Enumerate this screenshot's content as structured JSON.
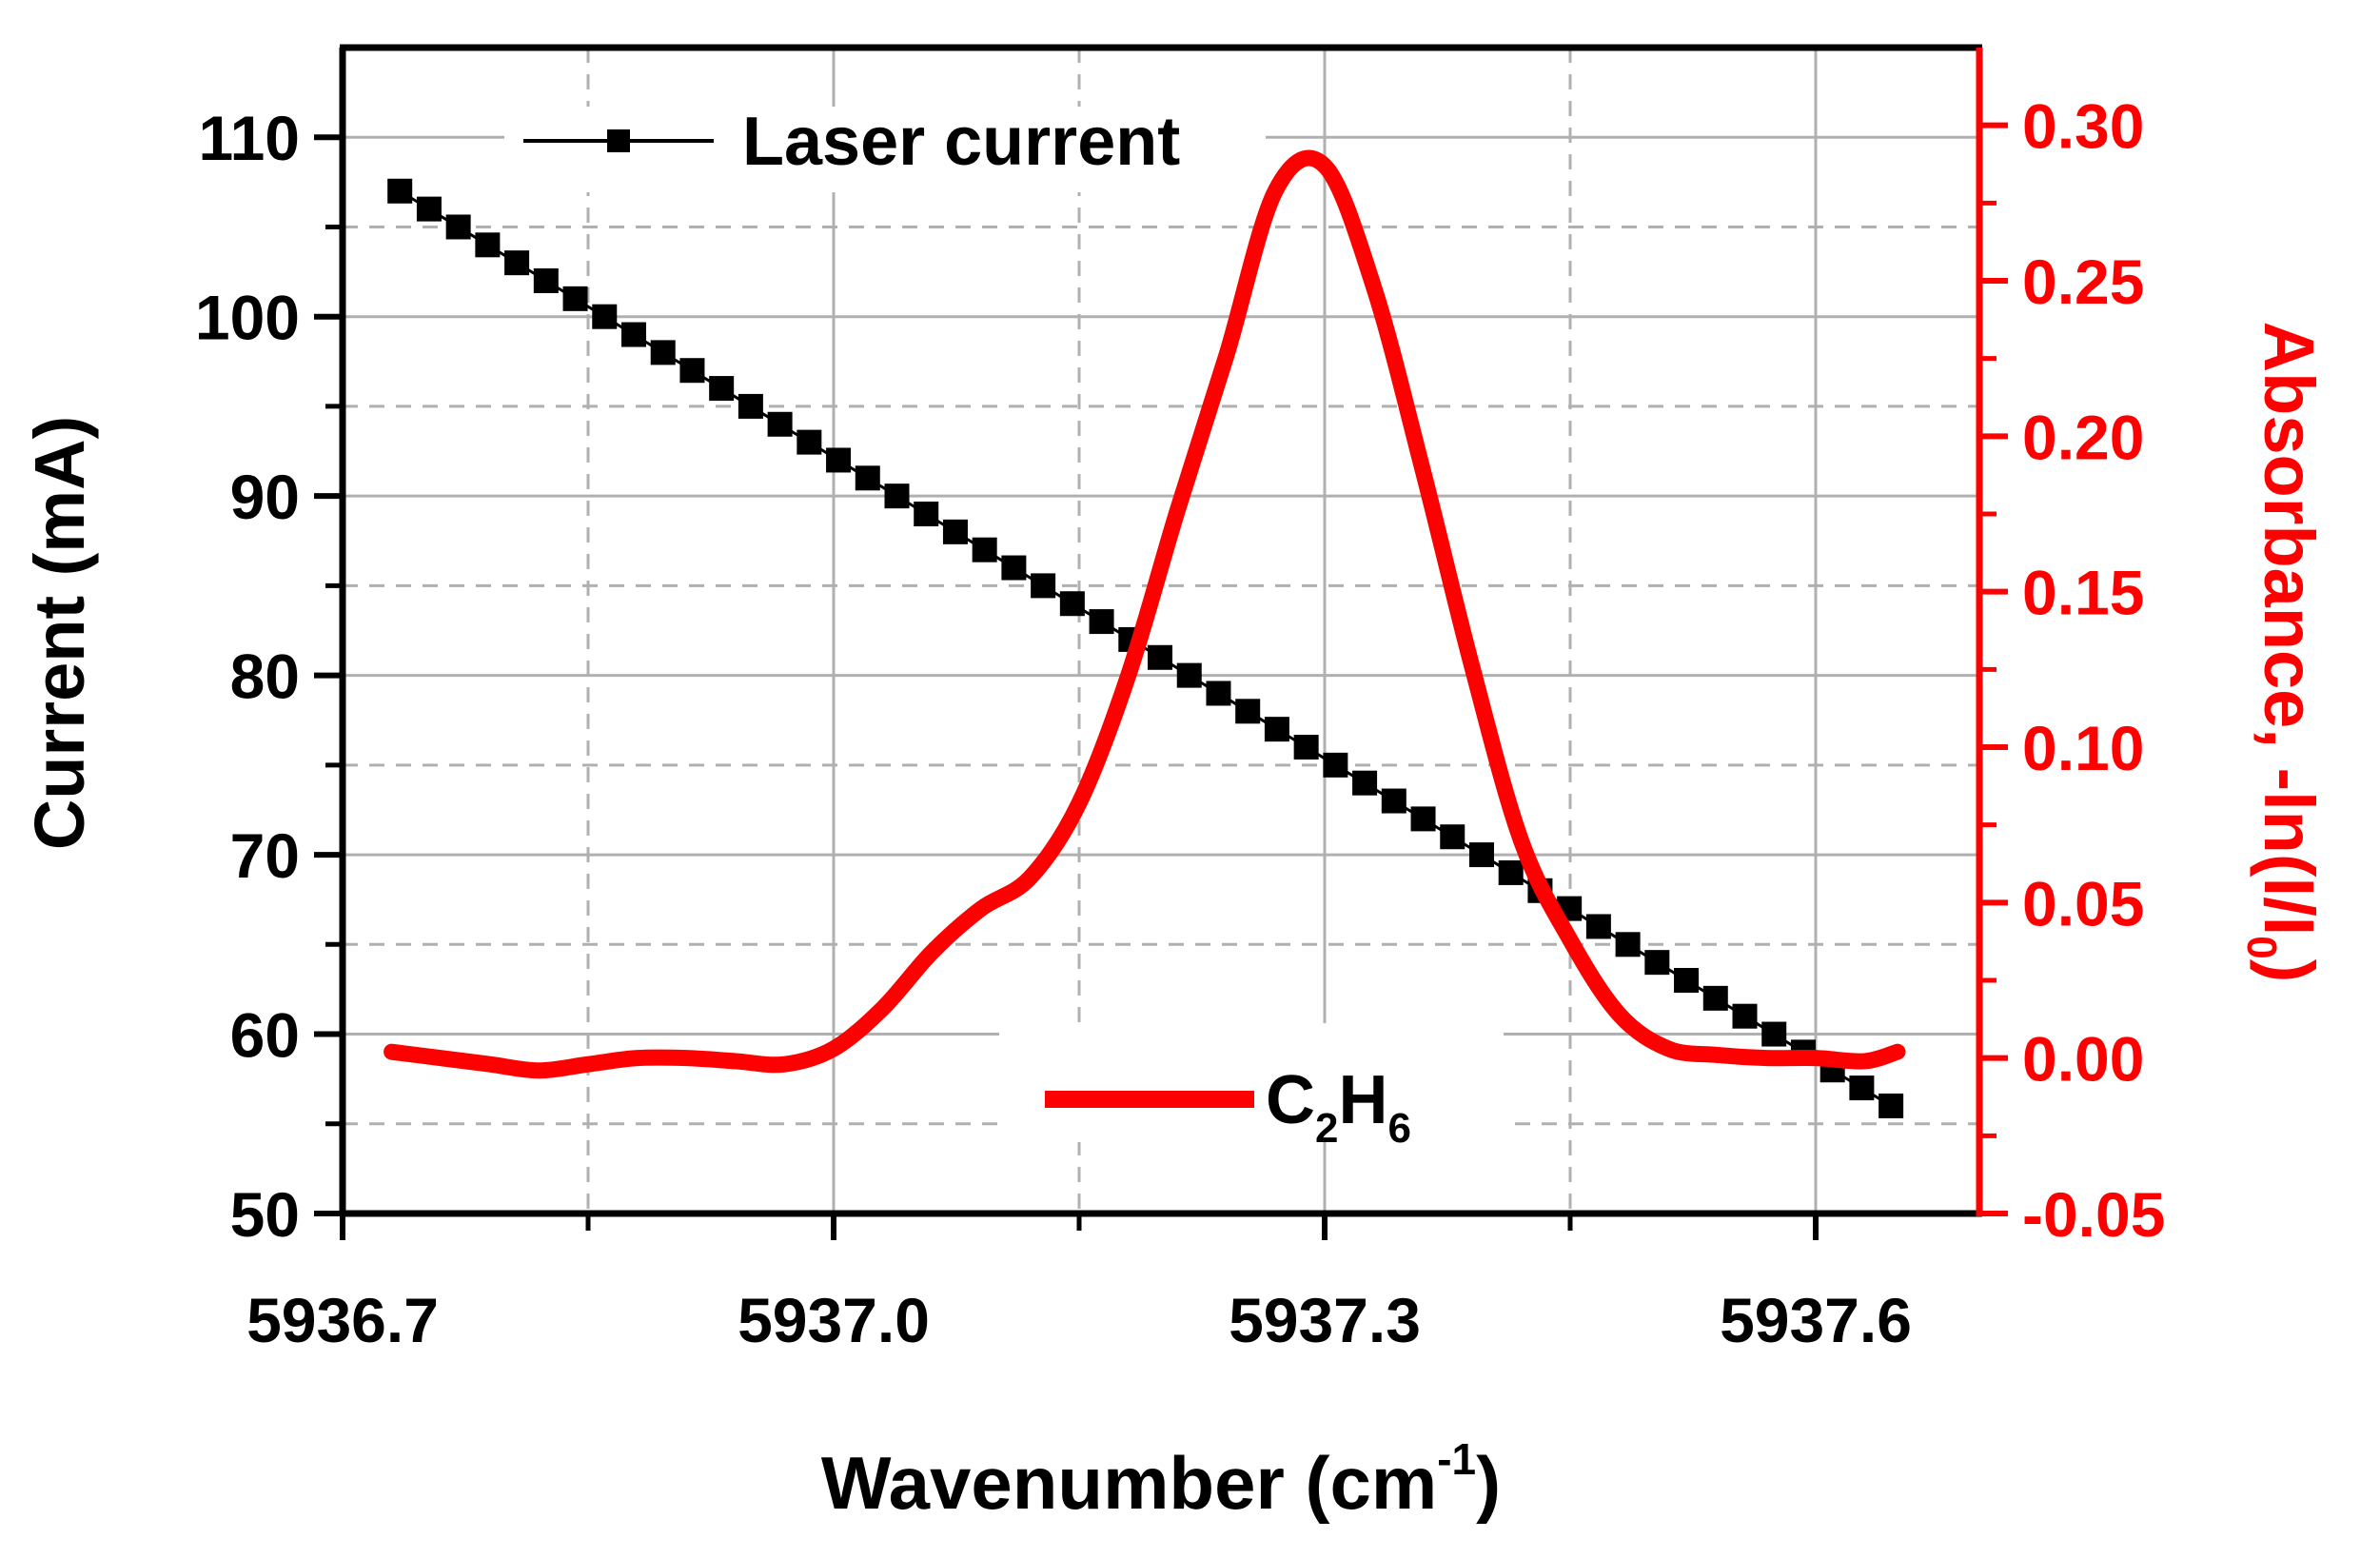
{
  "chart_data": {
    "type": "line",
    "xlabel": "Wavenumber (cm",
    "xlabel_sup": "-1",
    "xlabel_close": ")",
    "ylabel_left": "Current (mA)",
    "ylabel_right": "Absorbance, -ln(I/I",
    "ylabel_right_sub": "0",
    "ylabel_right_close": ")",
    "xlim": [
      5936.7,
      5937.7
    ],
    "ylim_left": [
      50,
      115
    ],
    "ylim_right": [
      -0.05,
      0.325
    ],
    "x_ticks": [
      5936.7,
      5937.0,
      5937.3,
      5937.6
    ],
    "x_tick_labels": [
      "5936.7",
      "5937.0",
      "5937.3",
      "5937.6"
    ],
    "y_left_ticks": [
      50,
      60,
      70,
      80,
      90,
      100,
      110
    ],
    "y_left_tick_labels": [
      "50",
      "60",
      "70",
      "80",
      "90",
      "100",
      "110"
    ],
    "y_right_ticks": [
      -0.05,
      0.0,
      0.05,
      0.1,
      0.15,
      0.2,
      0.25,
      0.3
    ],
    "y_right_tick_labels": [
      "-0.05",
      "0.00",
      "0.05",
      "0.10",
      "0.15",
      "0.20",
      "0.25",
      "0.30"
    ],
    "grid": true,
    "colors": {
      "current": "#000000",
      "absorbance": "#ff0000",
      "grid": "#b0b0b0"
    },
    "series": [
      {
        "name": "Laser current",
        "axis": "left",
        "marker": "square",
        "x_start": 5936.735,
        "x_end": 5937.646,
        "values": [
          107,
          106,
          105,
          104,
          103,
          102,
          101,
          100,
          99,
          98,
          97,
          96,
          95,
          94,
          93,
          92,
          91,
          90,
          89,
          88,
          87,
          86,
          85,
          84,
          83,
          82,
          81,
          80,
          79,
          78,
          77,
          76,
          75,
          74,
          73,
          72,
          71,
          70,
          69,
          68,
          67,
          66,
          65,
          64,
          63,
          62,
          61,
          60,
          59,
          58,
          57,
          56
        ]
      },
      {
        "name_main": "C",
        "name_sub1": "2",
        "name_mid": "H",
        "name_sub2": "6",
        "axis": "right",
        "x": [
          5936.73,
          5936.76,
          5936.79,
          5936.82,
          5936.85,
          5936.88,
          5936.91,
          5936.94,
          5936.97,
          5937.0,
          5937.03,
          5937.06,
          5937.09,
          5937.12,
          5937.15,
          5937.18,
          5937.21,
          5937.24,
          5937.27,
          5937.3,
          5937.33,
          5937.36,
          5937.39,
          5937.42,
          5937.45,
          5937.48,
          5937.51,
          5937.54,
          5937.57,
          5937.6,
          5937.63,
          5937.65
        ],
        "values": [
          0.002,
          0.0,
          -0.002,
          -0.004,
          -0.002,
          0.0,
          0.0,
          -0.001,
          -0.002,
          0.003,
          0.016,
          0.034,
          0.048,
          0.058,
          0.082,
          0.123,
          0.176,
          0.226,
          0.279,
          0.287,
          0.248,
          0.189,
          0.126,
          0.07,
          0.038,
          0.014,
          0.003,
          0.001,
          0.0,
          0.0,
          -0.001,
          0.002
        ]
      }
    ],
    "legend": [
      {
        "label": "Laser current",
        "position": "top-left"
      },
      {
        "label_main": "C",
        "label_sub1": "2",
        "label_mid": "H",
        "label_sub2": "6",
        "position": "bottom-center"
      }
    ]
  }
}
